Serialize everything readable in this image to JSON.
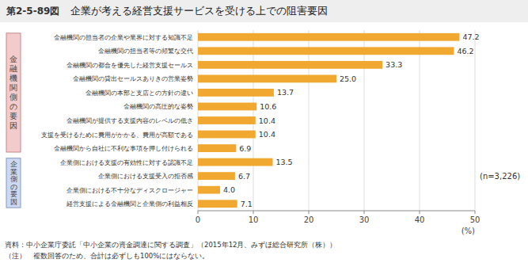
{
  "chart_data": {
    "type": "bar",
    "orientation": "horizontal",
    "title": "企業が考える経営支援サービスを受ける上での阻害要因",
    "categories": [
      "金融機関の担当者の企業や業界に対する知識不足",
      "金融機関の担当者等の頻繁な交代",
      "金融機関の都合を優先した経営支援セールス",
      "金融機関の貸出セールスありきの営業姿勢",
      "金融機関の本部と支店との方針の違い",
      "金融機関の高圧的な姿勢",
      "金融機関が提供する支援内容のレベルの低さ",
      "支援を受けるために費用がかかる、費用が高額である",
      "金融機関から自社に不利な事項を押し付けられる",
      "企業側における支援の有効性に対する認識不足",
      "企業側における支援受入の拒否感",
      "企業側における不十分なディスクロージャー",
      "経営支援による金融機関と企業側の利益相反"
    ],
    "values": [
      47.2,
      46.2,
      33.3,
      25.0,
      13.7,
      10.6,
      10.4,
      10.4,
      6.9,
      13.5,
      6.7,
      4.0,
      7.1
    ],
    "value_labels": [
      "47.2",
      "46.2",
      "33.3",
      "25.0",
      "13.7",
      "10.6",
      "10.4",
      "10.4",
      "6.9",
      "13.5",
      "6.7",
      "4.0",
      "7.1"
    ],
    "data_labels": true,
    "color": "#F0A830",
    "xlim": [
      0,
      50
    ],
    "xticks": [
      0,
      10,
      20,
      30,
      40,
      50
    ],
    "xlabel": "(%)",
    "grid": true,
    "groups": [
      {
        "name": "金融機関側の要因",
        "size": 9,
        "color": "#F2CCCC",
        "border": "#CC8888"
      },
      {
        "name": "企業側の要因",
        "size": 4,
        "color": "#CCD9F0",
        "border": "#8899CC"
      }
    ],
    "annotations": [
      "第2-5-89図",
      "(n=3,226)",
      "資料：中小企業庁委託「中小企業の資金調達に関する調査」（2015年12月、みずほ総合研究所（株））",
      "（注）　複数回答のため、合計は必ずしも100%にはならない。"
    ]
  }
}
